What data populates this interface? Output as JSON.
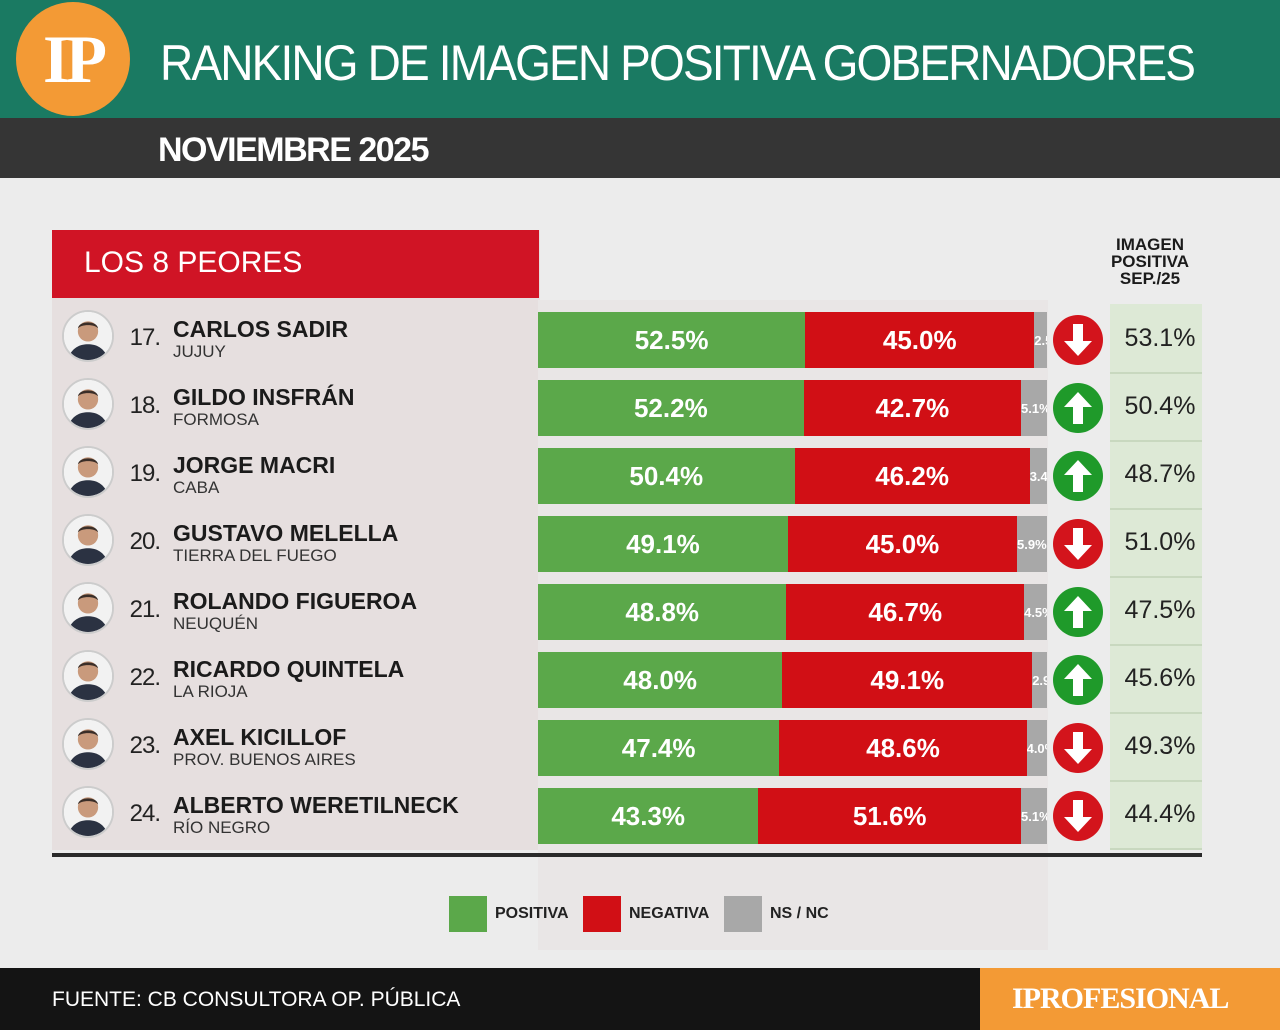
{
  "header": {
    "logo": "IP",
    "title": "RANKING DE IMAGEN POSITIVA GOBERNADORES",
    "subtitle": "NOVIEMBRE 2025"
  },
  "section_label": "LOS 8 PEORES",
  "prev_column_header": [
    "IMAGEN",
    "POSITIVA",
    "SEP./25"
  ],
  "legend": [
    {
      "label": "POSITIVA",
      "color": "#5ba84a"
    },
    {
      "label": "NEGATIVA",
      "color": "#d10f15"
    },
    {
      "label": "NS / NC",
      "color": "#a8a8a8"
    }
  ],
  "colors": {
    "positive": "#5ba84a",
    "negative": "#d10f15",
    "ns": "#a8a8a8",
    "arrow_up": "#1f9a2a",
    "arrow_down": "#d3141c",
    "header": "#1a7a62",
    "accent": "#f39a35"
  },
  "chart_data": {
    "type": "bar",
    "stacked": true,
    "orientation": "horizontal",
    "categories": [
      "CARLOS SADIR",
      "GILDO INSFRÁN",
      "JORGE MACRI",
      "GUSTAVO MELELLA",
      "ROLANDO FIGUEROA",
      "RICARDO QUINTELA",
      "AXEL KICILLOF",
      "ALBERTO WERETILNECK"
    ],
    "series": [
      {
        "name": "POSITIVA",
        "values": [
          52.5,
          52.2,
          50.4,
          49.1,
          48.8,
          48.0,
          47.4,
          43.3
        ]
      },
      {
        "name": "NEGATIVA",
        "values": [
          45.0,
          42.7,
          46.2,
          45.0,
          46.7,
          49.1,
          48.6,
          51.6
        ]
      },
      {
        "name": "NS / NC",
        "values": [
          2.5,
          5.1,
          3.4,
          5.9,
          4.5,
          2.9,
          4.0,
          5.1
        ]
      }
    ],
    "rows": [
      {
        "rank": "17.",
        "name": "CARLOS SADIR",
        "province": "JUJUY",
        "pos": "52.5%",
        "neg": "45.0%",
        "ns": "2.5%",
        "trend": "down",
        "prev": "53.1%",
        "p": 52.5,
        "n": 45.0,
        "s": 2.5
      },
      {
        "rank": "18.",
        "name": "GILDO INSFRÁN",
        "province": "FORMOSA",
        "pos": "52.2%",
        "neg": "42.7%",
        "ns": "5.1%",
        "trend": "up",
        "prev": "50.4%",
        "p": 52.2,
        "n": 42.7,
        "s": 5.1
      },
      {
        "rank": "19.",
        "name": "JORGE MACRI",
        "province": "CABA",
        "pos": "50.4%",
        "neg": "46.2%",
        "ns": "3.4%",
        "trend": "up",
        "prev": "48.7%",
        "p": 50.4,
        "n": 46.2,
        "s": 3.4
      },
      {
        "rank": "20.",
        "name": "GUSTAVO MELELLA",
        "province": "TIERRA DEL FUEGO",
        "pos": "49.1%",
        "neg": "45.0%",
        "ns": "5.9%",
        "trend": "down",
        "prev": "51.0%",
        "p": 49.1,
        "n": 45.0,
        "s": 5.9
      },
      {
        "rank": "21.",
        "name": "ROLANDO FIGUEROA",
        "province": "NEUQUÉN",
        "pos": "48.8%",
        "neg": "46.7%",
        "ns": "4.5%",
        "trend": "up",
        "prev": "47.5%",
        "p": 48.8,
        "n": 46.7,
        "s": 4.5
      },
      {
        "rank": "22.",
        "name": "RICARDO QUINTELA",
        "province": "LA RIOJA",
        "pos": "48.0%",
        "neg": "49.1%",
        "ns": "2.9%",
        "trend": "up",
        "prev": "45.6%",
        "p": 48.0,
        "n": 49.1,
        "s": 2.9
      },
      {
        "rank": "23.",
        "name": "AXEL KICILLOF",
        "province": "PROV. BUENOS AIRES",
        "pos": "47.4%",
        "neg": "48.6%",
        "ns": "4.0%",
        "trend": "down",
        "prev": "49.3%",
        "p": 47.4,
        "n": 48.6,
        "s": 4.0
      },
      {
        "rank": "24.",
        "name": "ALBERTO WERETILNECK",
        "province": "RÍO NEGRO",
        "pos": "43.3%",
        "neg": "51.6%",
        "ns": "5.1%",
        "trend": "down",
        "prev": "44.4%",
        "p": 43.3,
        "n": 51.6,
        "s": 5.1
      }
    ]
  },
  "footer": {
    "source": "FUENTE: CB CONSULTORA OP. PÚBLICA",
    "brand": "IPROFESIONAL"
  }
}
